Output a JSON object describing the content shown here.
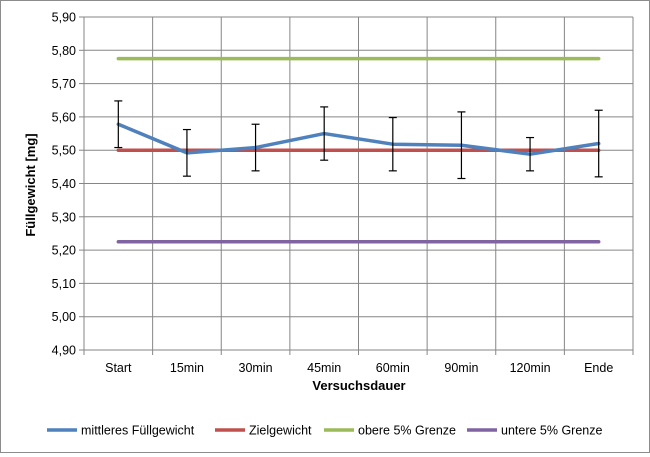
{
  "chart_data": {
    "type": "line",
    "title": "",
    "xlabel": "Versuchsdauer",
    "ylabel": "Füllgewicht [mg]",
    "categories": [
      "Start",
      "15min",
      "30min",
      "45min",
      "60min",
      "90min",
      "120min",
      "Ende"
    ],
    "ylim": [
      4.9,
      5.9
    ],
    "yticks": [
      "4,90",
      "5,00",
      "5,10",
      "5,20",
      "5,30",
      "5,40",
      "5,50",
      "5,60",
      "5,70",
      "5,80",
      "5,90"
    ],
    "grid": true,
    "legend_position": "bottom",
    "series": [
      {
        "name": "mittleres Füllgewicht",
        "color": "#4f81bd",
        "values": [
          5.578,
          5.492,
          5.508,
          5.55,
          5.518,
          5.515,
          5.488,
          5.52
        ],
        "error_low": [
          5.508,
          5.422,
          5.438,
          5.47,
          5.438,
          5.415,
          5.438,
          5.42
        ],
        "error_high": [
          5.648,
          5.562,
          5.578,
          5.63,
          5.598,
          5.615,
          5.538,
          5.62
        ]
      },
      {
        "name": "Zielgewicht",
        "color": "#c0504d",
        "values": [
          5.5,
          5.5,
          5.5,
          5.5,
          5.5,
          5.5,
          5.5,
          5.5
        ]
      },
      {
        "name": "obere 5% Grenze",
        "color": "#9bbb59",
        "values": [
          5.775,
          5.775,
          5.775,
          5.775,
          5.775,
          5.775,
          5.775,
          5.775
        ]
      },
      {
        "name": "untere 5% Grenze",
        "color": "#8064a2",
        "values": [
          5.225,
          5.225,
          5.225,
          5.225,
          5.225,
          5.225,
          5.225,
          5.225
        ]
      }
    ]
  }
}
